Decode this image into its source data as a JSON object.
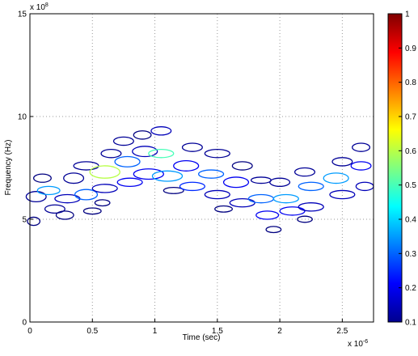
{
  "chart_data": {
    "type": "contour",
    "xlabel": "Time (sec)",
    "ylabel": "Frequency (Hz)",
    "x_multiplier": {
      "base": "x 10",
      "exponent": "-6"
    },
    "y_multiplier": {
      "base": "x 10",
      "exponent": "8"
    },
    "xlim": [
      0,
      2.75
    ],
    "ylim": [
      0,
      15
    ],
    "xticks": [
      0,
      0.5,
      1,
      1.5,
      2,
      2.5
    ],
    "yticks": [
      0,
      5,
      10,
      15
    ],
    "grid": true,
    "colormap": "jet",
    "clim": [
      0.1,
      1
    ],
    "colorbar_ticks": [
      0.1,
      0.2,
      0.3,
      0.4,
      0.5,
      0.6,
      0.7,
      0.8,
      0.9,
      1
    ],
    "contours": {
      "x": [
        0.05,
        0.03,
        0.1,
        0.15,
        0.2,
        0.3,
        0.35,
        0.28,
        0.45,
        0.45,
        0.5,
        0.6,
        0.6,
        0.65,
        0.58,
        0.78,
        0.8,
        0.75,
        0.92,
        0.95,
        0.9,
        1.05,
        1.1,
        1.05,
        1.15,
        1.25,
        1.3,
        1.3,
        1.45,
        1.5,
        1.5,
        1.55,
        1.65,
        1.7,
        1.7,
        1.85,
        1.9,
        1.95,
        1.85,
        2.05,
        2.1,
        2.0,
        2.25,
        2.25,
        2.2,
        2.2,
        2.45,
        2.5,
        2.5,
        2.65,
        2.65,
        2.68
      ],
      "y": [
        6.1,
        4.9,
        7.0,
        6.4,
        5.5,
        6.0,
        7.0,
        5.2,
        6.2,
        7.6,
        5.4,
        7.3,
        6.5,
        8.2,
        5.8,
        7.8,
        6.8,
        8.8,
        8.3,
        7.2,
        9.1,
        8.2,
        7.1,
        9.3,
        6.4,
        7.6,
        6.6,
        8.5,
        7.2,
        6.2,
        8.2,
        5.5,
        6.8,
        5.8,
        7.6,
        6.0,
        5.2,
        4.5,
        6.9,
        6.0,
        5.4,
        6.8,
        6.6,
        5.6,
        7.3,
        5.0,
        7.0,
        6.2,
        7.8,
        7.6,
        8.5,
        6.6
      ],
      "width": [
        0.08,
        0.05,
        0.07,
        0.09,
        0.08,
        0.1,
        0.08,
        0.07,
        0.09,
        0.1,
        0.07,
        0.12,
        0.1,
        0.08,
        0.06,
        0.1,
        0.1,
        0.08,
        0.1,
        0.12,
        0.07,
        0.1,
        0.12,
        0.08,
        0.08,
        0.1,
        0.1,
        0.08,
        0.1,
        0.1,
        0.1,
        0.07,
        0.1,
        0.1,
        0.08,
        0.1,
        0.09,
        0.06,
        0.08,
        0.1,
        0.1,
        0.08,
        0.1,
        0.1,
        0.08,
        0.06,
        0.1,
        0.1,
        0.08,
        0.08,
        0.07,
        0.07
      ],
      "height": [
        0.25,
        0.2,
        0.2,
        0.2,
        0.2,
        0.2,
        0.25,
        0.2,
        0.25,
        0.2,
        0.15,
        0.3,
        0.2,
        0.2,
        0.15,
        0.25,
        0.2,
        0.2,
        0.25,
        0.25,
        0.2,
        0.2,
        0.25,
        0.2,
        0.15,
        0.25,
        0.2,
        0.2,
        0.2,
        0.2,
        0.2,
        0.15,
        0.25,
        0.2,
        0.2,
        0.2,
        0.2,
        0.15,
        0.15,
        0.2,
        0.2,
        0.2,
        0.2,
        0.2,
        0.2,
        0.15,
        0.25,
        0.2,
        0.2,
        0.2,
        0.2,
        0.2
      ],
      "level": [
        0.12,
        0.1,
        0.1,
        0.35,
        0.12,
        0.15,
        0.12,
        0.1,
        0.3,
        0.12,
        0.1,
        0.6,
        0.15,
        0.12,
        0.1,
        0.3,
        0.2,
        0.12,
        0.15,
        0.2,
        0.1,
        0.5,
        0.35,
        0.15,
        0.1,
        0.2,
        0.25,
        0.12,
        0.3,
        0.15,
        0.12,
        0.1,
        0.2,
        0.15,
        0.1,
        0.3,
        0.2,
        0.1,
        0.12,
        0.35,
        0.2,
        0.12,
        0.3,
        0.15,
        0.12,
        0.1,
        0.35,
        0.15,
        0.12,
        0.2,
        0.12,
        0.15
      ]
    }
  }
}
